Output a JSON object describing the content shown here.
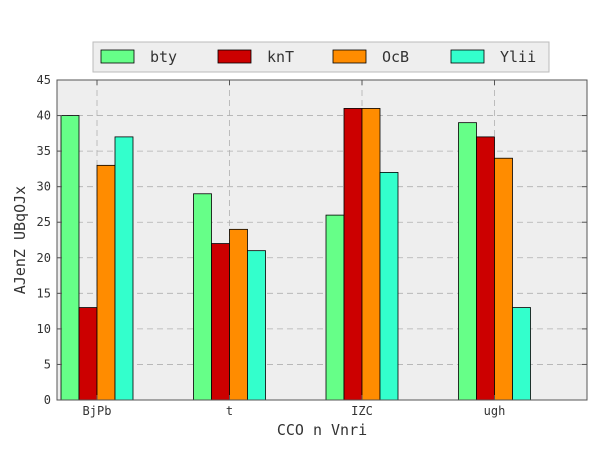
{
  "chart_data": {
    "type": "bar",
    "title": "",
    "xlabel": "CCO n Vnri",
    "ylabel": "AJenZ UBqOJx",
    "categories": [
      "BjPb",
      "t",
      "IZC",
      "ugh"
    ],
    "series": [
      {
        "name": "bty",
        "color": "#66ff88",
        "values": [
          40,
          29,
          26,
          39
        ]
      },
      {
        "name": "knT",
        "color": "#cc0000",
        "values": [
          13,
          22,
          41,
          37
        ]
      },
      {
        "name": "OcB",
        "color": "#ff8c00",
        "values": [
          33,
          24,
          41,
          34
        ]
      },
      {
        "name": "Ylii",
        "color": "#33ffcc",
        "values": [
          37,
          21,
          32,
          13
        ]
      }
    ],
    "ylim": [
      0,
      45
    ],
    "yticks": [
      0,
      5,
      10,
      15,
      20,
      25,
      30,
      35,
      40,
      45
    ],
    "grid": true,
    "legend_position": "top-center",
    "plot_background": "#eeeeee"
  }
}
